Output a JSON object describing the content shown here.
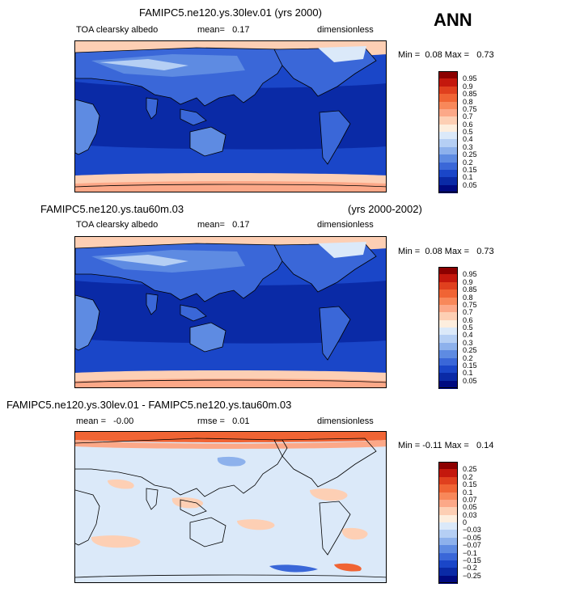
{
  "season": "ANN",
  "panels": [
    {
      "id": "p1",
      "case_title": "FAMIPC5.ne120.ys.30lev.01 (yrs 2000)",
      "case_title_right": "",
      "variable": "TOA clearsky albedo",
      "stat1": "mean=   0.17",
      "stat2": "",
      "units": "dimensionless",
      "minmax": "Min =  0.08 Max =   0.73",
      "levels": [
        "0.95",
        "0.9",
        "0.85",
        "0.8",
        "0.75",
        "0.7",
        "0.6",
        "0.5",
        "0.4",
        "0.3",
        "0.25",
        "0.2",
        "0.15",
        "0.1",
        "0.05"
      ],
      "colors": [
        "#8c0000",
        "#c4180d",
        "#e0401e",
        "#f06434",
        "#f8885a",
        "#fca888",
        "#fdcfb4",
        "#fdeede",
        "#dbe9f9",
        "#b5cff4",
        "#8db1ec",
        "#5e8be2",
        "#3a67d8",
        "#1a46c8",
        "#0a2aa6",
        "#000a80"
      ]
    },
    {
      "id": "p2",
      "case_title": "FAMIPC5.ne120.ys.tau60m.03",
      "case_title_right": "(yrs 2000-2002)",
      "variable": "TOA clearsky albedo",
      "stat1": "mean=   0.17",
      "stat2": "",
      "units": "dimensionless",
      "minmax": "Min =  0.08 Max =   0.73",
      "levels": [
        "0.95",
        "0.9",
        "0.85",
        "0.8",
        "0.75",
        "0.7",
        "0.6",
        "0.5",
        "0.4",
        "0.3",
        "0.25",
        "0.2",
        "0.15",
        "0.1",
        "0.05"
      ],
      "colors": [
        "#8c0000",
        "#c4180d",
        "#e0401e",
        "#f06434",
        "#f8885a",
        "#fca888",
        "#fdcfb4",
        "#fdeede",
        "#dbe9f9",
        "#b5cff4",
        "#8db1ec",
        "#5e8be2",
        "#3a67d8",
        "#1a46c8",
        "#0a2aa6",
        "#000a80"
      ]
    },
    {
      "id": "p3",
      "case_title": "FAMIPC5.ne120.ys.30lev.01 - FAMIPC5.ne120.ys.tau60m.03",
      "case_title_right": "",
      "variable": "",
      "stat1": "mean =   -0.00",
      "stat2": "rmse =   0.01",
      "units": "dimensionless",
      "minmax": "Min = -0.11 Max =   0.14",
      "levels": [
        "0.25",
        "0.2",
        "0.15",
        "0.1",
        "0.07",
        "0.05",
        "0.03",
        "0",
        "-0.03",
        "-0.05",
        "-0.07",
        "-0.1",
        "-0.15",
        "-0.2",
        "-0.25"
      ],
      "colors": [
        "#8c0000",
        "#c4180d",
        "#e0401e",
        "#f06434",
        "#f8885a",
        "#fca888",
        "#fdcfb4",
        "#fdeede",
        "#dbe9f9",
        "#b5cff4",
        "#8db1ec",
        "#5e8be2",
        "#3a67d8",
        "#1a46c8",
        "#0a2aa6",
        "#000a80"
      ]
    }
  ],
  "chart_data": [
    {
      "type": "heatmap",
      "title": "FAMIPC5.ne120.ys.30lev.01 (yrs 2000)",
      "variable": "TOA clearsky albedo",
      "units": "dimensionless",
      "mean": 0.17,
      "min": 0.08,
      "max": 0.73,
      "contour_levels": [
        0.05,
        0.1,
        0.15,
        0.2,
        0.25,
        0.3,
        0.4,
        0.5,
        0.6,
        0.7,
        0.75,
        0.8,
        0.85,
        0.9,
        0.95
      ],
      "projection": "cylindrical equidistant, centered on Pacific"
    },
    {
      "type": "heatmap",
      "title": "FAMIPC5.ne120.ys.tau60m.03 (yrs 2000-2002)",
      "variable": "TOA clearsky albedo",
      "units": "dimensionless",
      "mean": 0.17,
      "min": 0.08,
      "max": 0.73,
      "contour_levels": [
        0.05,
        0.1,
        0.15,
        0.2,
        0.25,
        0.3,
        0.4,
        0.5,
        0.6,
        0.7,
        0.75,
        0.8,
        0.85,
        0.9,
        0.95
      ],
      "projection": "cylindrical equidistant, centered on Pacific"
    },
    {
      "type": "heatmap",
      "title": "FAMIPC5.ne120.ys.30lev.01 - FAMIPC5.ne120.ys.tau60m.03",
      "units": "dimensionless",
      "mean": -0.0,
      "rmse": 0.01,
      "min": -0.11,
      "max": 0.14,
      "contour_levels": [
        -0.25,
        -0.2,
        -0.15,
        -0.1,
        -0.07,
        -0.05,
        -0.03,
        0,
        0.03,
        0.05,
        0.07,
        0.1,
        0.15,
        0.2,
        0.25
      ],
      "projection": "cylindrical equidistant, centered on Pacific"
    }
  ]
}
